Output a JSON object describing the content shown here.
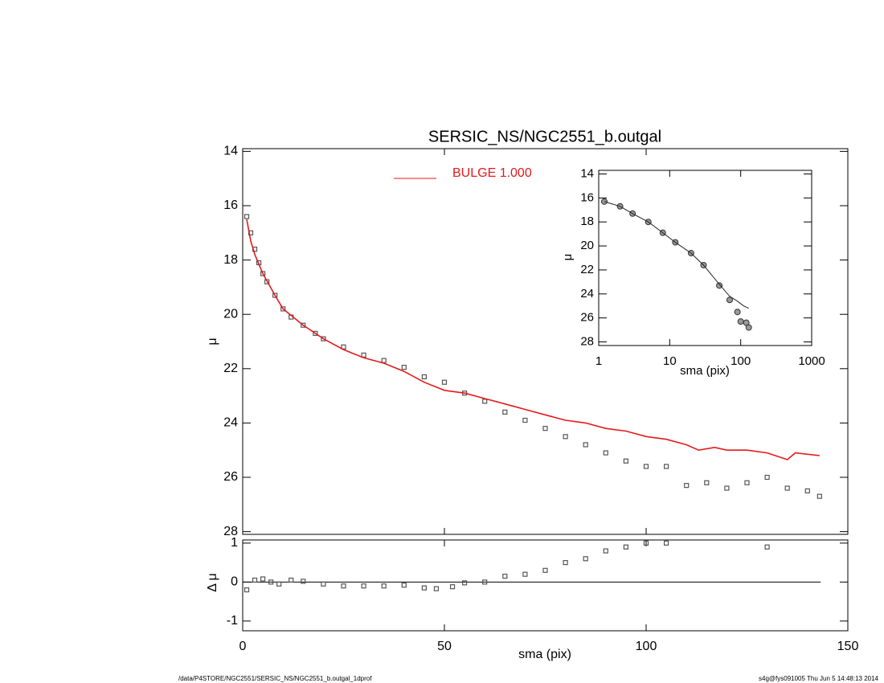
{
  "footer": {
    "left": "/data/P4STORE/NGC2551/SERSIC_NS/NGC2551_b.outgal_1dprof",
    "right": "s4g@fys091005  Thu Jun  5 14:48:13 2014"
  },
  "chart_data": [
    {
      "type": "scatter",
      "title": "SERSIC_NS/NGC2551_b.outgal",
      "y_label": "μ",
      "xlim": [
        0,
        150
      ],
      "xticks": [
        0,
        50,
        100,
        150
      ],
      "show_xtick_labels": false,
      "ylim": [
        13.9,
        28.1
      ],
      "y_inverted": true,
      "yticks": [
        14,
        16,
        18,
        20,
        22,
        24,
        26,
        28
      ],
      "legend": "top",
      "series": [
        {
          "mode": "markers",
          "color": "#555555",
          "x": [
            1,
            2,
            3,
            4,
            5,
            6,
            8,
            10,
            12,
            15,
            18,
            20,
            25,
            30,
            35,
            40,
            45,
            50,
            55,
            60,
            65,
            70,
            75,
            80,
            85,
            90,
            95,
            100,
            105,
            110,
            115,
            120,
            125,
            130,
            135,
            140,
            143
          ],
          "values": [
            16.4,
            17.0,
            17.6,
            18.1,
            18.5,
            18.8,
            19.3,
            19.8,
            20.1,
            20.4,
            20.7,
            20.9,
            21.2,
            21.5,
            21.7,
            21.95,
            22.3,
            22.5,
            22.9,
            23.2,
            23.6,
            23.9,
            24.2,
            24.5,
            24.8,
            25.1,
            25.4,
            25.6,
            25.6,
            26.3,
            26.2,
            26.4,
            26.2,
            26.0,
            26.4,
            26.5,
            26.7
          ]
        },
        {
          "mode": "line",
          "name": "BULGE  1.000",
          "color": "#e41a1c",
          "x": [
            1,
            2,
            3,
            5,
            8,
            10,
            15,
            20,
            25,
            30,
            35,
            40,
            45,
            50,
            55,
            60,
            65,
            70,
            75,
            80,
            85,
            90,
            95,
            100,
            105,
            110,
            113,
            117,
            120,
            125,
            130,
            135,
            137,
            143
          ],
          "values": [
            16.5,
            17.3,
            17.8,
            18.5,
            19.3,
            19.8,
            20.4,
            20.9,
            21.3,
            21.6,
            21.8,
            22.1,
            22.5,
            22.8,
            22.9,
            23.1,
            23.3,
            23.5,
            23.7,
            23.9,
            24.0,
            24.2,
            24.3,
            24.5,
            24.6,
            24.8,
            25.0,
            24.9,
            25.0,
            25.0,
            25.1,
            25.35,
            25.1,
            25.2
          ]
        }
      ]
    },
    {
      "type": "scatter",
      "x_label": "sma (pix)",
      "y_label": "Δ μ",
      "xlim": [
        0,
        150
      ],
      "xticks": [
        0,
        50,
        100,
        150
      ],
      "show_xtick_labels": true,
      "ylim": [
        -1.25,
        1.08
      ],
      "y_inverted": false,
      "yticks": [
        -1,
        0,
        1
      ],
      "reference_line": 0,
      "series": [
        {
          "mode": "markers",
          "color": "#555555",
          "x": [
            1,
            3,
            5,
            7,
            9,
            12,
            15,
            20,
            25,
            30,
            35,
            40,
            45,
            48,
            52,
            55,
            60,
            65,
            70,
            75,
            80,
            85,
            90,
            95,
            100,
            105,
            130
          ],
          "values": [
            -0.2,
            0.05,
            0.08,
            0.0,
            -0.05,
            0.05,
            0.02,
            -0.05,
            -0.1,
            -0.1,
            -0.1,
            -0.08,
            -0.15,
            -0.17,
            -0.12,
            -0.02,
            0.0,
            0.15,
            0.2,
            0.3,
            0.5,
            0.6,
            0.8,
            0.9,
            1.0,
            1.0,
            0.9
          ]
        }
      ]
    },
    {
      "type": "scatter",
      "x_label": "sma (pix)",
      "y_label": "μ",
      "xlog": true,
      "xlim": [
        1,
        1000
      ],
      "xticks": [
        1,
        10,
        100,
        1000
      ],
      "show_xtick_labels": true,
      "ylim": [
        13.7,
        28.3
      ],
      "y_inverted": true,
      "yticks": [
        14,
        16,
        18,
        20,
        22,
        24,
        26,
        28
      ],
      "series": [
        {
          "mode": "circles",
          "color": "#999999",
          "x": [
            1.2,
            2,
            3,
            5,
            8,
            12,
            20,
            30,
            50,
            70,
            90,
            100,
            120,
            130
          ],
          "values": [
            16.3,
            16.7,
            17.3,
            18.0,
            18.9,
            19.7,
            20.6,
            21.6,
            23.3,
            24.5,
            25.5,
            26.3,
            26.4,
            26.8
          ]
        },
        {
          "mode": "line",
          "color": "#222222",
          "x": [
            1.2,
            2,
            3,
            5,
            8,
            12,
            20,
            30,
            50,
            70,
            90,
            110,
            130
          ],
          "values": [
            16.3,
            16.7,
            17.3,
            18.0,
            18.9,
            19.7,
            20.6,
            21.6,
            23.2,
            24.2,
            24.6,
            25.0,
            25.2
          ]
        }
      ]
    }
  ]
}
